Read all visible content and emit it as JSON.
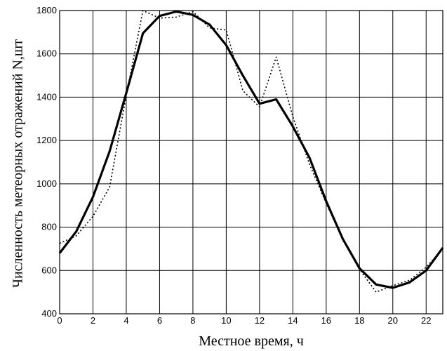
{
  "chart_data": {
    "type": "line",
    "title": "",
    "xlabel": "Местное время, ч",
    "ylabel": "Численность метеорных отражений N,шт",
    "xlim": [
      0,
      23
    ],
    "ylim": [
      400,
      1800
    ],
    "grid": true,
    "xticks": [
      0,
      2,
      4,
      6,
      8,
      10,
      12,
      14,
      16,
      18,
      20,
      22
    ],
    "yticks": [
      400,
      600,
      800,
      1000,
      1200,
      1400,
      1600,
      1800
    ],
    "x": [
      0,
      1,
      2,
      3,
      4,
      5,
      6,
      7,
      8,
      9,
      10,
      11,
      12,
      13,
      14,
      15,
      16,
      17,
      18,
      19,
      20,
      21,
      22,
      23
    ],
    "series": [
      {
        "style": "solid",
        "color": "#000000",
        "values": [
          680,
          780,
          940,
          1150,
          1420,
          1695,
          1775,
          1795,
          1780,
          1735,
          1640,
          1500,
          1370,
          1390,
          1265,
          1120,
          920,
          745,
          610,
          535,
          520,
          545,
          600,
          705
        ]
      },
      {
        "style": "dotted",
        "color": "#000000",
        "values": [
          725,
          760,
          850,
          985,
          1410,
          1800,
          1765,
          1770,
          1795,
          1720,
          1710,
          1430,
          1355,
          1585,
          1310,
          1090,
          910,
          740,
          605,
          500,
          530,
          555,
          615,
          700
        ]
      }
    ]
  }
}
